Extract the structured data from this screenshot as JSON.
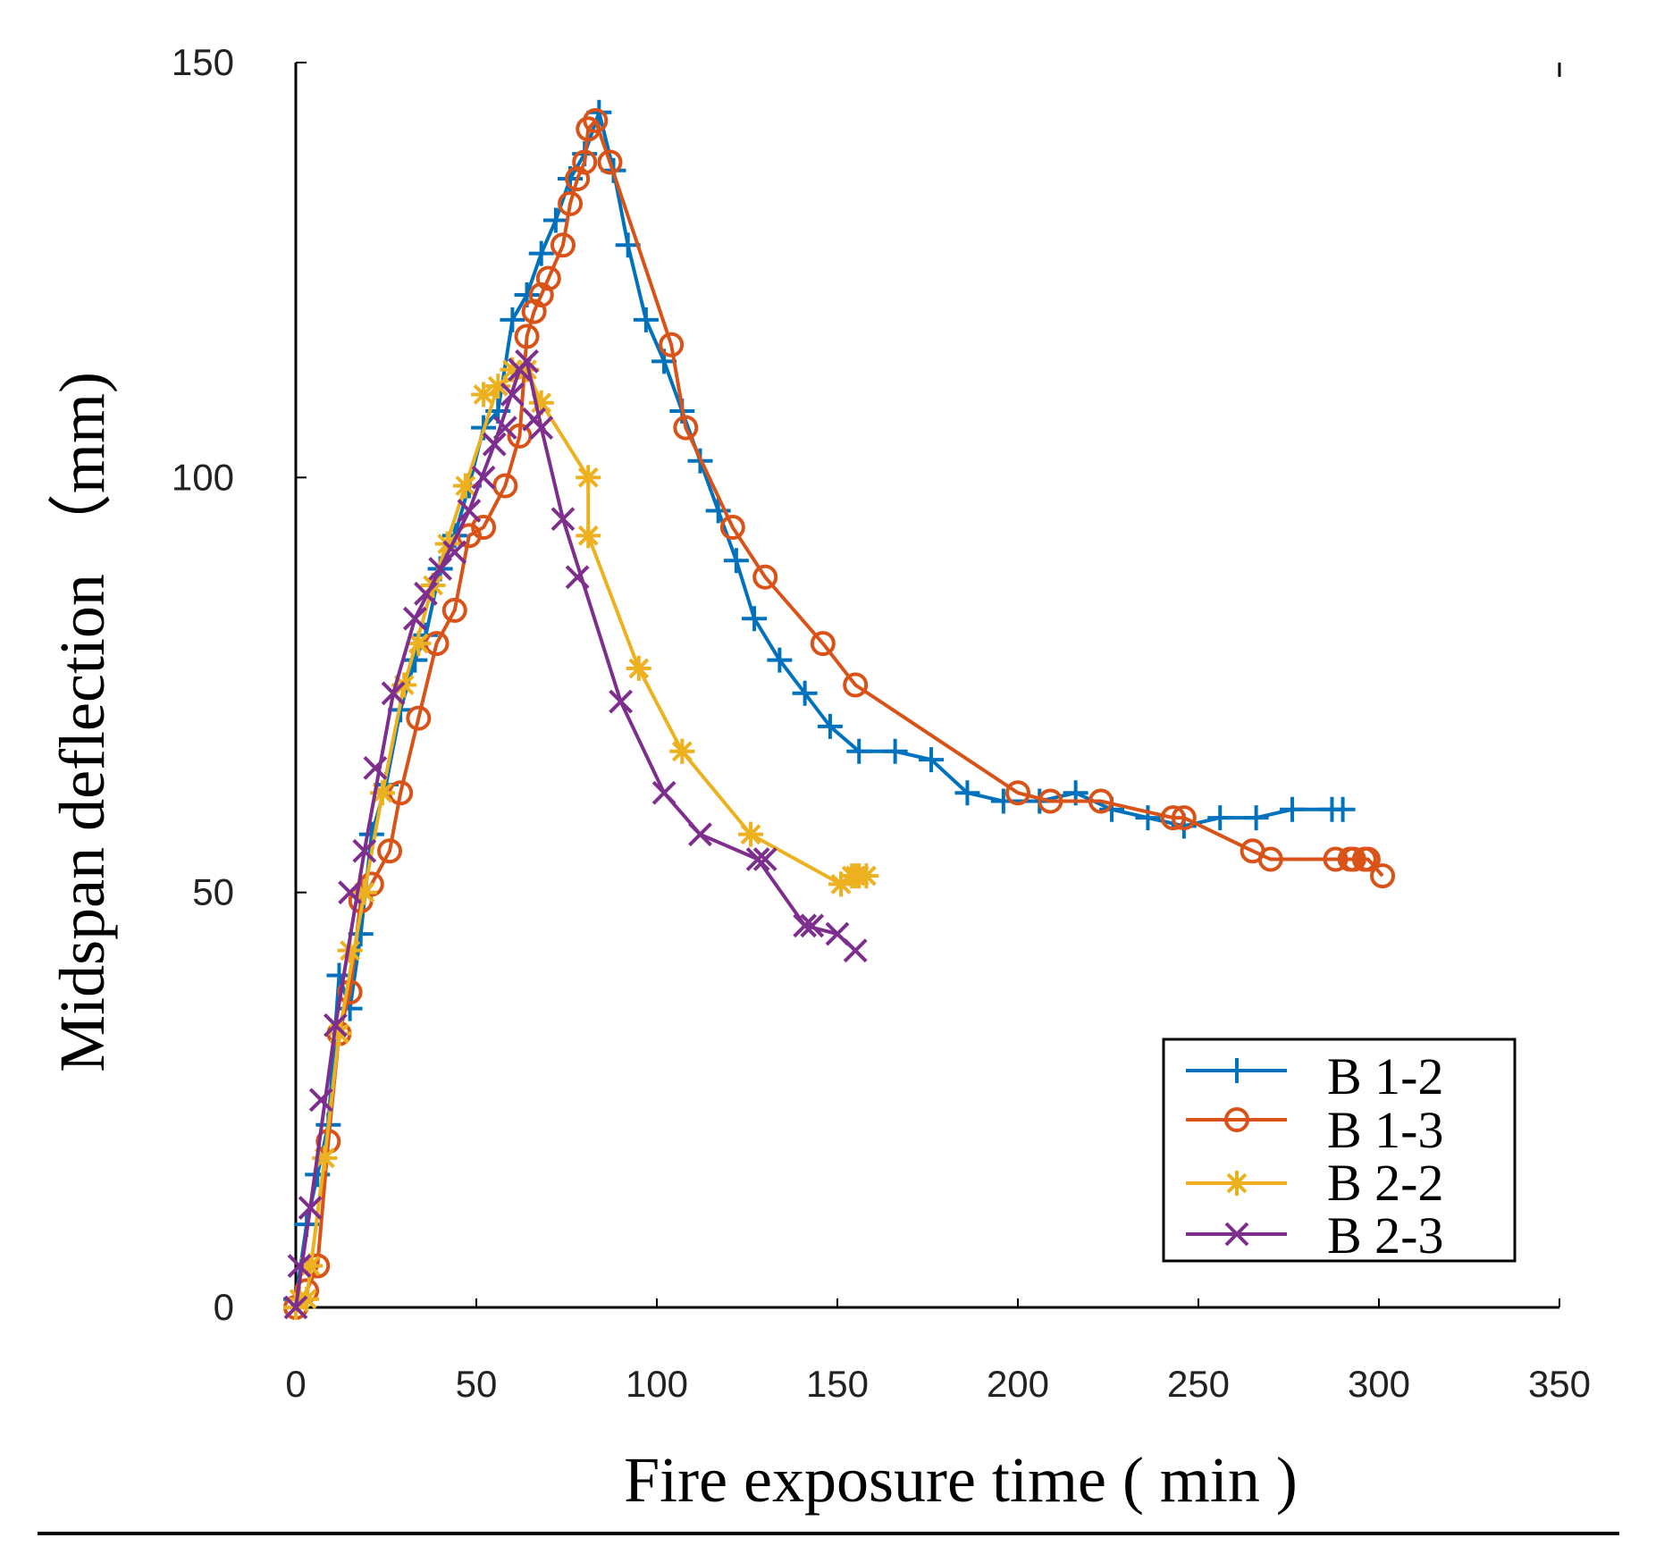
{
  "chart_data": {
    "type": "line",
    "xlabel": "Fire exposure time ( min )",
    "ylabel": "Midspan deflection （mm)",
    "xlim": [
      0,
      350
    ],
    "ylim": [
      0,
      150
    ],
    "x_ticks": [
      0,
      50,
      100,
      150,
      200,
      250,
      300,
      350
    ],
    "y_ticks": [
      0,
      50,
      100,
      150
    ],
    "grid": false,
    "legend_position": "bottom-right",
    "series": [
      {
        "name": "B 1-2",
        "color": "#0072BD",
        "marker": "plus",
        "x": [
          0,
          3,
          6,
          9,
          12,
          15,
          18,
          21,
          25,
          29,
          33,
          36,
          40,
          44,
          48,
          52,
          56,
          60,
          64,
          68,
          72,
          76,
          80,
          84,
          88,
          92,
          97,
          102,
          107,
          112,
          117,
          122,
          127,
          134,
          141,
          148,
          156,
          166,
          176,
          186,
          196,
          206,
          216,
          226,
          236,
          246,
          256,
          266,
          276,
          287,
          290
        ],
        "y": [
          1,
          10,
          16,
          22,
          40,
          36,
          45,
          57,
          63,
          72,
          78,
          81,
          89,
          93,
          99,
          106,
          108,
          119,
          122,
          127,
          131,
          136,
          139,
          144,
          137,
          128,
          119,
          114,
          108,
          102,
          96,
          90,
          83,
          78,
          74,
          70,
          67,
          67,
          66,
          62,
          61,
          61,
          62,
          60,
          59,
          58,
          59,
          59,
          60,
          60,
          60
        ]
      },
      {
        "name": "B 1-3",
        "color": "#D95319",
        "marker": "circle",
        "x": [
          0,
          3,
          6,
          9,
          12,
          15,
          18,
          21,
          26,
          29,
          34,
          39,
          44,
          48,
          52,
          58,
          62,
          64,
          66,
          68,
          70,
          74,
          76,
          78,
          80,
          81,
          83,
          87,
          104,
          108,
          121,
          130,
          146,
          155,
          200,
          209,
          223,
          243,
          246,
          265,
          270,
          288,
          292,
          293,
          296,
          297,
          301
        ],
        "y": [
          0,
          2,
          5,
          20,
          33,
          38,
          49,
          51,
          55,
          62,
          71,
          80,
          84,
          93,
          94,
          99,
          105,
          117,
          120,
          122,
          124,
          128,
          133,
          136,
          138,
          142,
          143,
          138,
          116,
          106,
          94,
          88,
          80,
          75,
          62,
          61,
          61,
          59,
          59,
          55,
          54,
          54,
          54,
          54,
          54,
          54,
          52
        ]
      },
      {
        "name": "B 2-2",
        "color": "#EDB120",
        "marker": "asterisk",
        "x": [
          0,
          1,
          3,
          4,
          8,
          12,
          15,
          19,
          24,
          30,
          34,
          38,
          42,
          47,
          52,
          56,
          60,
          64,
          68,
          81,
          81,
          95,
          107,
          126,
          151,
          154,
          155,
          156,
          158
        ],
        "y": [
          0,
          1,
          1,
          5,
          18,
          33,
          43,
          50,
          62,
          75,
          80,
          87,
          92,
          99,
          110,
          111,
          113,
          113,
          109,
          100,
          93,
          77,
          67,
          57,
          51,
          52,
          52,
          52,
          52
        ],
        "line_x": [
          0,
          3,
          8,
          12,
          19,
          24,
          30,
          38,
          47,
          56,
          64,
          68,
          81,
          81,
          95,
          107,
          126,
          151,
          158
        ],
        "line_y": [
          0,
          1,
          18,
          33,
          50,
          62,
          75,
          87,
          99,
          111,
          113,
          109,
          100,
          93,
          77,
          67,
          57,
          51,
          52
        ]
      },
      {
        "name": "B 2-3",
        "color": "#7E2F8E",
        "marker": "x",
        "x": [
          0,
          1,
          4,
          7,
          11,
          15,
          19,
          22,
          27,
          33,
          36,
          40,
          44,
          48,
          52,
          55,
          58,
          60,
          62,
          64,
          66,
          68,
          74,
          78,
          90,
          102,
          112,
          128,
          130,
          141,
          143,
          150,
          155
        ],
        "y": [
          0,
          5,
          12,
          25,
          34,
          50,
          55,
          65,
          74,
          83,
          86,
          89,
          91,
          96,
          100,
          104,
          106,
          110,
          113,
          114,
          107,
          106,
          95,
          88,
          73,
          62,
          57,
          54,
          54,
          46,
          46,
          45,
          43
        ],
        "line_x": [
          0,
          4,
          11,
          19,
          27,
          33,
          40,
          48,
          55,
          62,
          64,
          68,
          74,
          90,
          102,
          112,
          128,
          141,
          150,
          155
        ],
        "line_y": [
          0,
          12,
          34,
          55,
          74,
          83,
          89,
          96,
          104,
          113,
          114,
          106,
          95,
          73,
          62,
          57,
          54,
          46,
          45,
          43
        ]
      }
    ]
  }
}
